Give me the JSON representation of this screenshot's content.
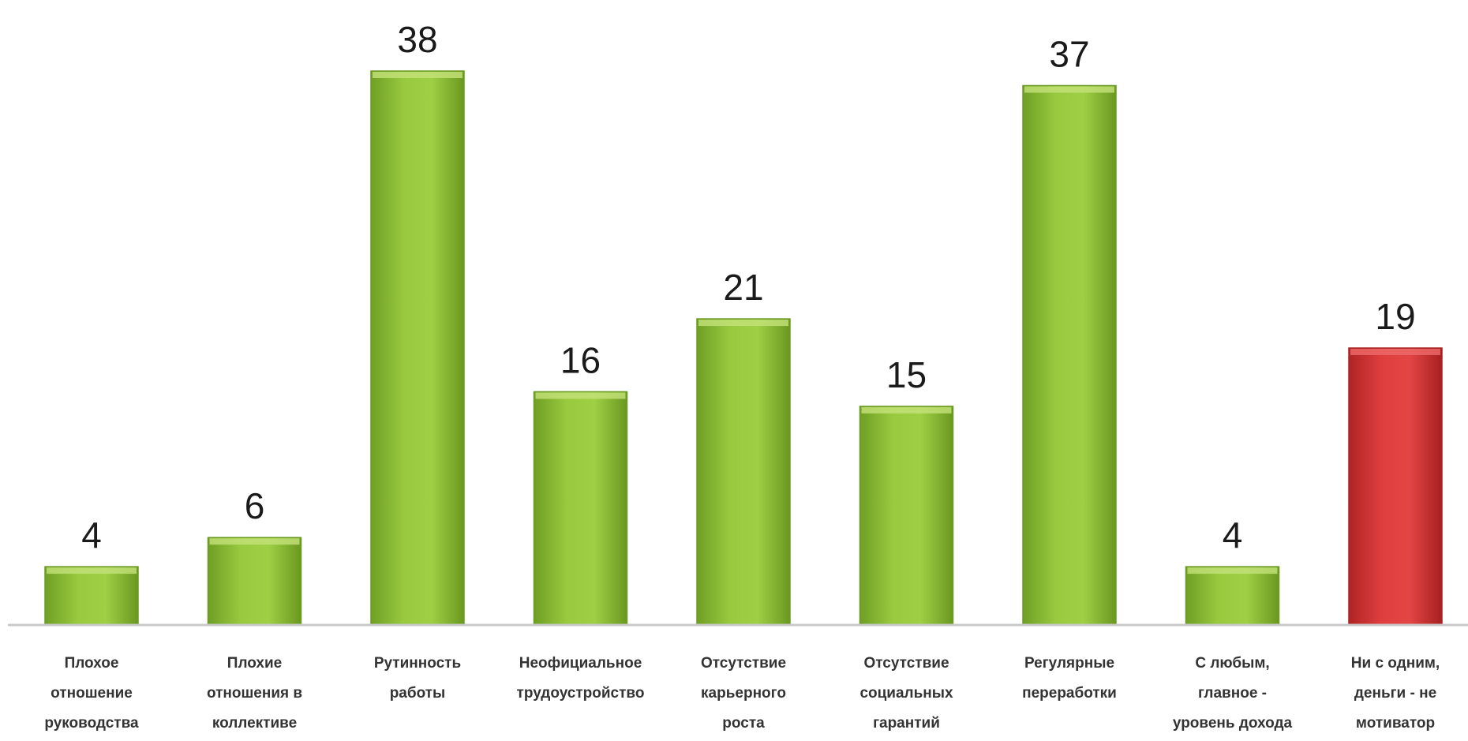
{
  "chart_data": {
    "type": "bar",
    "categories": [
      [
        "Плохое",
        "отношение",
        "руководства"
      ],
      [
        "Плохие",
        "отношения в",
        "коллективе"
      ],
      [
        "Рутинность",
        "работы"
      ],
      [
        "Неофициальное",
        "трудоустройство"
      ],
      [
        "Отсутствие",
        "карьерного",
        "роста"
      ],
      [
        "Отсутствие",
        "социальных",
        "гарантий"
      ],
      [
        "Регулярные",
        "переработки"
      ],
      [
        "С любым,",
        "главное -",
        "уровень дохода"
      ],
      [
        "Ни с одним,",
        "деньги - не",
        "мотиватор"
      ]
    ],
    "values": [
      4,
      6,
      38,
      16,
      21,
      15,
      37,
      4,
      19
    ],
    "highlight_index": 8,
    "colors": {
      "bar": "#8fc23a",
      "bar_dark": "#6a9a22",
      "highlight": "#d93a3a",
      "highlight_dark": "#a82222",
      "axis": "#c8c8c8"
    },
    "ylim": [
      0,
      38
    ],
    "grid": false,
    "legend": "none"
  }
}
